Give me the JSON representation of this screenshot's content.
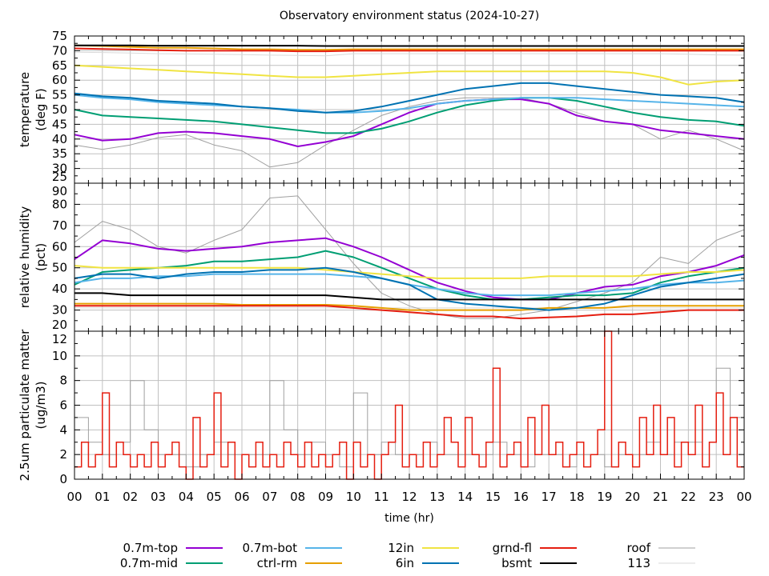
{
  "chart_data": [
    {
      "type": "line",
      "title": "Observatory environment status (2024-10-27)",
      "xlabel": "time (hr)",
      "x_tick_labels": [
        "00",
        "01",
        "02",
        "03",
        "04",
        "05",
        "06",
        "07",
        "08",
        "09",
        "10",
        "11",
        "12",
        "13",
        "14",
        "15",
        "16",
        "17",
        "18",
        "19",
        "20",
        "21",
        "22",
        "23",
        "00"
      ],
      "xlim": [
        0,
        24
      ],
      "grid": true,
      "panels": [
        {
          "ylabel": [
            "temperature",
            "(deg F)"
          ],
          "ylim": [
            25,
            75
          ],
          "ytick_step": 5,
          "x": [
            0,
            1,
            2,
            3,
            4,
            5,
            6,
            7,
            8,
            9,
            10,
            11,
            12,
            13,
            14,
            15,
            16,
            17,
            18,
            19,
            20,
            21,
            22,
            23,
            24
          ],
          "series": [
            {
              "name": "113",
              "color": "#d9d9d9",
              "width": 1,
              "values": [
                69.5,
                69.4,
                69.2,
                69,
                68.9,
                68.8,
                68.7,
                68.5,
                68.4,
                68.3,
                69,
                69,
                69,
                69,
                69,
                69,
                69,
                69,
                69,
                69,
                69,
                69,
                68.8,
                68.6,
                68.5
              ]
            },
            {
              "name": "roof",
              "color": "#a0a0a0",
              "width": 1,
              "values": [
                38,
                36.5,
                38,
                40.5,
                41.5,
                38,
                36,
                30.5,
                32,
                38,
                43,
                48,
                51,
                53,
                54,
                54,
                54,
                52,
                49,
                46,
                45,
                40,
                43,
                40,
                36
              ]
            },
            {
              "name": "0.7m-top",
              "color": "#9400d3",
              "width": 2,
              "values": [
                41.5,
                39.5,
                40,
                42,
                42.5,
                42,
                41,
                40,
                37.5,
                39,
                41,
                45,
                49,
                52,
                53,
                53.5,
                53.5,
                52,
                48,
                46,
                45,
                43,
                42,
                41,
                40
              ]
            },
            {
              "name": "0.7m-mid",
              "color": "#009e73",
              "width": 2,
              "values": [
                50,
                48,
                47.5,
                47,
                46.5,
                46,
                45,
                44,
                43,
                42,
                42,
                43.5,
                46,
                49,
                51.5,
                53,
                54,
                54,
                53,
                51,
                49,
                47.5,
                46.5,
                46,
                44.5
              ]
            },
            {
              "name": "0.7m-bot",
              "color": "#56b4e9",
              "width": 2,
              "values": [
                55,
                54,
                53.5,
                52.5,
                52,
                51.5,
                51,
                50.5,
                50,
                49,
                49,
                49.5,
                50.5,
                52,
                53,
                53.5,
                54,
                54,
                54,
                53.5,
                53,
                52.5,
                52,
                51.5,
                51
              ]
            },
            {
              "name": "ctrl-rm",
              "color": "#e69f00",
              "width": 2,
              "values": [
                71.8,
                71.6,
                71.3,
                71,
                71,
                70.8,
                70.5,
                70.5,
                70.3,
                70.3,
                70.5,
                70.5,
                70.5,
                70.5,
                70.5,
                70.5,
                70.5,
                70.5,
                70.5,
                70.5,
                70.5,
                70.5,
                70.5,
                70.5,
                70.5
              ]
            },
            {
              "name": "12in",
              "color": "#f0e442",
              "width": 2,
              "values": [
                65,
                64.5,
                64,
                63.5,
                63,
                62.5,
                62,
                61.5,
                61,
                61,
                61.5,
                62,
                62.5,
                63,
                63,
                63,
                63,
                63,
                63,
                63,
                62.5,
                61,
                58.5,
                59.5,
                60
              ]
            },
            {
              "name": "6in",
              "color": "#0072b2",
              "width": 2,
              "values": [
                55.5,
                54.5,
                54,
                53,
                52.5,
                52,
                51,
                50.5,
                49.5,
                49,
                49.5,
                51,
                53,
                55,
                57,
                58,
                59,
                59,
                58,
                57,
                56,
                55,
                54.5,
                54,
                52.5
              ]
            },
            {
              "name": "grnd-fl",
              "color": "#e51e10",
              "width": 2,
              "values": [
                70.8,
                70.6,
                70.4,
                70.2,
                70,
                70,
                70,
                70,
                69.8,
                69.8,
                70,
                70,
                70,
                70,
                70,
                70,
                70,
                70,
                70,
                70,
                70,
                70,
                70,
                70,
                70
              ]
            },
            {
              "name": "bsmt",
              "color": "#000000",
              "width": 2,
              "values": [
                71.8,
                71.8,
                71.8,
                71.7,
                71.7,
                71.7,
                71.7,
                71.7,
                71.7,
                71.6,
                71.6,
                71.6,
                71.6,
                71.6,
                71.6,
                71.6,
                71.6,
                71.6,
                71.6,
                71.6,
                71.6,
                71.6,
                71.6,
                71.6,
                71.6
              ]
            }
          ]
        },
        {
          "ylabel": [
            "relative humidity",
            "(pct)"
          ],
          "ylim": [
            20,
            90
          ],
          "ytick_step": 10,
          "x": [
            0,
            1,
            2,
            3,
            4,
            5,
            6,
            7,
            8,
            9,
            10,
            11,
            12,
            13,
            14,
            15,
            16,
            17,
            18,
            19,
            20,
            21,
            22,
            23,
            24
          ],
          "series": [
            {
              "name": "113",
              "color": "#d9d9d9",
              "width": 1,
              "values": [
                31,
                31,
                31,
                31,
                31,
                31,
                31,
                31,
                31,
                31,
                31,
                31,
                31,
                31,
                31,
                31,
                31,
                31,
                31,
                31,
                31,
                31,
                31,
                31,
                31
              ]
            },
            {
              "name": "roof",
              "color": "#a0a0a0",
              "width": 1,
              "values": [
                62,
                72,
                68,
                60,
                57,
                63,
                68,
                83,
                84,
                68,
                52,
                38,
                32,
                28,
                26,
                26,
                28,
                30,
                34,
                38,
                43,
                55,
                52,
                63,
                68
              ]
            },
            {
              "name": "0.7m-top",
              "color": "#9400d3",
              "width": 2,
              "values": [
                54,
                63,
                61.5,
                59,
                58,
                59,
                60,
                62,
                63,
                64,
                60,
                55,
                49,
                43,
                39,
                36,
                35,
                35,
                38,
                41,
                42,
                46,
                48,
                51,
                56
              ]
            },
            {
              "name": "0.7m-mid",
              "color": "#009e73",
              "width": 2,
              "values": [
                42,
                48,
                49,
                50,
                51,
                53,
                53,
                54,
                55,
                58,
                55,
                50,
                45,
                40,
                37,
                35,
                35,
                36,
                37,
                37,
                38,
                43,
                46,
                48,
                50
              ]
            },
            {
              "name": "0.7m-bot",
              "color": "#56b4e9",
              "width": 2,
              "values": [
                43,
                45,
                45,
                46,
                46,
                47,
                47,
                47,
                47,
                47,
                46,
                45,
                42,
                40,
                38,
                37,
                37,
                37,
                38,
                39,
                40,
                42,
                43,
                43,
                44
              ]
            },
            {
              "name": "ctrl-rm",
              "color": "#e69f00",
              "width": 2,
              "values": [
                33,
                33,
                33,
                33,
                33,
                33,
                32.5,
                32.5,
                32.5,
                32.5,
                32,
                31,
                30,
                30,
                30,
                30,
                30,
                31,
                31,
                31,
                32,
                32,
                32,
                32,
                32
              ]
            },
            {
              "name": "12in",
              "color": "#f0e442",
              "width": 2,
              "values": [
                51,
                50,
                50,
                50,
                50,
                50,
                50,
                50,
                50,
                49,
                48,
                47,
                46,
                45,
                45,
                45,
                45,
                46,
                46,
                46,
                46,
                47,
                48,
                48,
                49
              ]
            },
            {
              "name": "6in",
              "color": "#0072b2",
              "width": 2,
              "values": [
                45,
                47,
                47,
                45,
                47,
                48,
                48,
                49,
                49,
                50,
                48,
                45,
                42,
                35,
                33,
                32,
                31,
                30,
                31,
                33,
                37,
                41,
                43,
                45,
                47
              ]
            },
            {
              "name": "grnd-fl",
              "color": "#e51e10",
              "width": 2,
              "values": [
                32,
                32,
                32,
                32,
                32,
                32,
                32,
                32,
                32,
                32,
                31,
                30,
                29,
                28,
                27,
                27,
                26,
                26.5,
                27,
                28,
                28,
                29,
                30,
                30,
                30
              ]
            },
            {
              "name": "bsmt",
              "color": "#000000",
              "width": 2,
              "values": [
                38,
                38,
                37,
                37,
                37,
                37,
                37,
                37,
                37,
                37,
                36,
                35,
                35,
                35,
                35,
                35,
                35,
                35,
                35,
                35,
                35,
                35,
                35,
                35,
                35
              ]
            }
          ]
        },
        {
          "ylabel": [
            "2.5um particulate matter",
            "(ug/m3)"
          ],
          "ylim": [
            0,
            12
          ],
          "ytick_step": 2,
          "step_series": [
            {
              "name": "roof",
              "color": "#a0a0a0",
              "width": 1,
              "interval_hr": 0.5,
              "values": [
                5,
                3,
                2,
                3,
                8,
                4,
                2,
                2,
                1,
                2,
                3,
                2,
                2,
                2,
                8,
                4,
                2,
                3,
                2,
                1,
                7,
                2,
                3,
                2,
                2,
                3,
                2,
                2,
                2,
                2,
                3,
                2,
                1,
                2,
                2,
                1,
                2,
                2,
                1,
                2,
                2,
                3,
                2,
                3,
                3,
                4,
                9,
                5
              ]
            },
            {
              "name": "grnd-fl",
              "color": "#e51e10",
              "width": 1.5,
              "interval_hr": 0.25,
              "values": [
                1,
                3,
                1,
                2,
                7,
                1,
                3,
                2,
                1,
                2,
                1,
                3,
                1,
                2,
                3,
                1,
                0,
                5,
                1,
                2,
                7,
                1,
                3,
                0,
                2,
                1,
                3,
                1,
                2,
                1,
                3,
                2,
                1,
                3,
                1,
                2,
                1,
                2,
                3,
                0,
                3,
                1,
                2,
                0,
                2,
                3,
                6,
                1,
                2,
                1,
                3,
                1,
                2,
                5,
                3,
                1,
                5,
                2,
                1,
                3,
                9,
                1,
                2,
                3,
                1,
                5,
                2,
                6,
                2,
                3,
                1,
                2,
                3,
                1,
                2,
                4,
                12,
                1,
                3,
                2,
                1,
                5,
                2,
                6,
                2,
                5,
                1,
                3,
                2,
                6,
                1,
                3,
                7,
                2,
                5,
                1
              ]
            }
          ]
        }
      ],
      "legend": {
        "placement": "bottom",
        "entries": [
          {
            "label": "0.7m-top",
            "color": "#9400d3"
          },
          {
            "label": "0.7m-mid",
            "color": "#009e73"
          },
          {
            "label": "0.7m-bot",
            "color": "#56b4e9"
          },
          {
            "label": "ctrl-rm",
            "color": "#e69f00"
          },
          {
            "label": "12in",
            "color": "#f0e442"
          },
          {
            "label": "6in",
            "color": "#0072b2"
          },
          {
            "label": "grnd-fl",
            "color": "#e51e10"
          },
          {
            "label": "bsmt",
            "color": "#000000"
          },
          {
            "label": "roof",
            "color": "#a0a0a0"
          },
          {
            "label": "113",
            "color": "#d9d9d9"
          }
        ]
      }
    }
  ]
}
